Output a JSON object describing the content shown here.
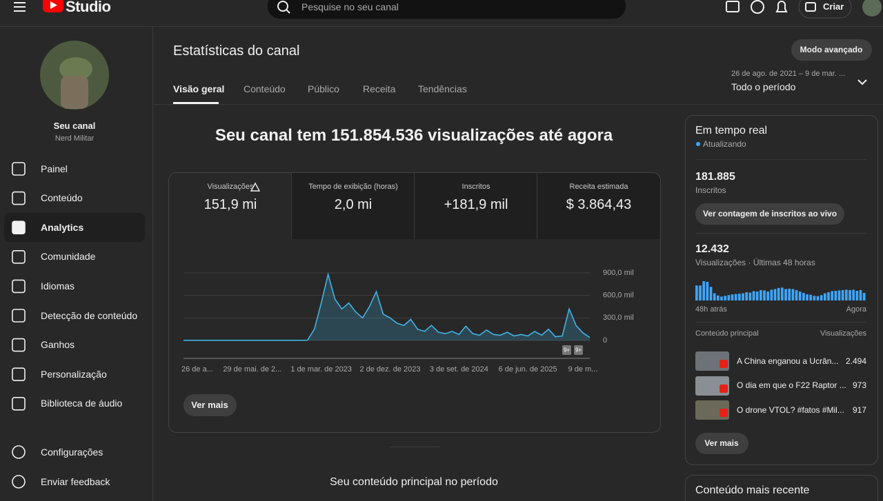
{
  "header": {
    "logo": "Studio",
    "search_placeholder": "Pesquise no seu canal",
    "create": "Criar"
  },
  "sidebar": {
    "channel_label": "Seu canal",
    "channel_name": "Nerd Militar",
    "items": [
      "Painel",
      "Conteúdo",
      "Analytics",
      "Comunidade",
      "Idiomas",
      "Detecção de conteúdo",
      "Ganhos",
      "Personalização",
      "Biblioteca de áudio"
    ],
    "footer_items": [
      "Configurações",
      "Enviar feedback"
    ]
  },
  "page": {
    "title": "Estatísticas do canal",
    "advanced": "Modo avançado",
    "date_range": "26 de ago. de 2021 – 9 de mar. ...",
    "period": "Todo o período",
    "tabs": [
      "Visão geral",
      "Conteúdo",
      "Público",
      "Receita",
      "Tendências"
    ]
  },
  "summary": {
    "headline": "Seu canal tem 151.854.536 visualizações até agora",
    "metrics": [
      {
        "label": "Visualizações",
        "value": "151,9 mi"
      },
      {
        "label": "Tempo de exibição (horas)",
        "value": "2,0 mi"
      },
      {
        "label": "Inscritos",
        "value": "+181,9 mil"
      },
      {
        "label": "Receita estimada",
        "value": "$ 3.864,43"
      }
    ],
    "more": "Ver mais",
    "top_content_title": "Seu conteúdo principal no período"
  },
  "chart_data": [
    {
      "type": "area",
      "color": "#41b4e6",
      "categories": [
        null,
        null,
        "26 de a...",
        null,
        null,
        null,
        null,
        null,
        null,
        null,
        "29 de mai. de 2...",
        null,
        null,
        null,
        null,
        null,
        null,
        null,
        null,
        null,
        "1 de mar. de 2023",
        null,
        null,
        null,
        null,
        null,
        null,
        null,
        null,
        null,
        "2 de dez. de 2023",
        null,
        null,
        null,
        null,
        null,
        null,
        null,
        null,
        null,
        "3 de set. de 2024",
        null,
        null,
        null,
        null,
        null,
        null,
        null,
        null,
        null,
        "6 de jun. de 2025",
        null,
        null,
        null,
        null,
        null,
        null,
        null,
        "9 de m...",
        null
      ],
      "values": [
        2,
        2,
        2,
        2,
        2,
        2,
        2,
        2,
        2,
        2,
        2,
        2,
        2,
        2,
        2,
        2,
        2,
        2,
        3,
        150,
        500,
        880,
        550,
        420,
        500,
        380,
        300,
        450,
        650,
        350,
        300,
        230,
        200,
        280,
        150,
        120,
        200,
        110,
        90,
        120,
        80,
        190,
        90,
        70,
        140,
        80,
        70,
        110,
        60,
        80,
        60,
        120,
        70,
        150,
        50,
        60,
        420,
        200,
        100,
        40
      ],
      "ylim": [
        0,
        900
      ],
      "yticks": [
        0,
        {
          "value": 300,
          "label": "300,0 mil"
        },
        {
          "value": 600,
          "label": "600,0 mil"
        },
        {
          "value": 900,
          "label": "900,0 mil"
        }
      ],
      "grid": true,
      "annotations": [
        "9+",
        "9+"
      ]
    },
    {
      "type": "bar",
      "color": "#3ea6ff",
      "values": [
        420,
        420,
        540,
        520,
        380,
        200,
        140,
        110,
        130,
        150,
        170,
        180,
        190,
        200,
        230,
        220,
        260,
        250,
        290,
        280,
        250,
        300,
        320,
        350,
        360,
        320,
        330,
        320,
        290,
        250,
        210,
        170,
        160,
        130,
        120,
        150,
        200,
        230,
        260,
        270,
        280,
        290,
        300,
        290,
        300,
        270,
        290,
        210
      ]
    }
  ],
  "realtime": {
    "title": "Em tempo real",
    "status": "Atualizando",
    "subscribers": "181.885",
    "subscribers_label": "Inscritos",
    "live_button": "Ver contagem de inscritos ao vivo",
    "views": "12.432",
    "views_label": "Visualizações · Últimas 48 horas",
    "start_label": "48h atrás",
    "end_label": "Agora",
    "content_header": "Conteúdo principal",
    "views_header": "Visualizações",
    "rows": [
      {
        "title": "A China enganou a Ucrân...",
        "views": "2.494"
      },
      {
        "title": "O dia em que o F22 Raptor ...",
        "views": "973"
      },
      {
        "title": "O drone VTOL? #fatos #Mil...",
        "views": "917"
      }
    ],
    "more": "Ver mais"
  },
  "recent_title": "Conteúdo mais recente"
}
